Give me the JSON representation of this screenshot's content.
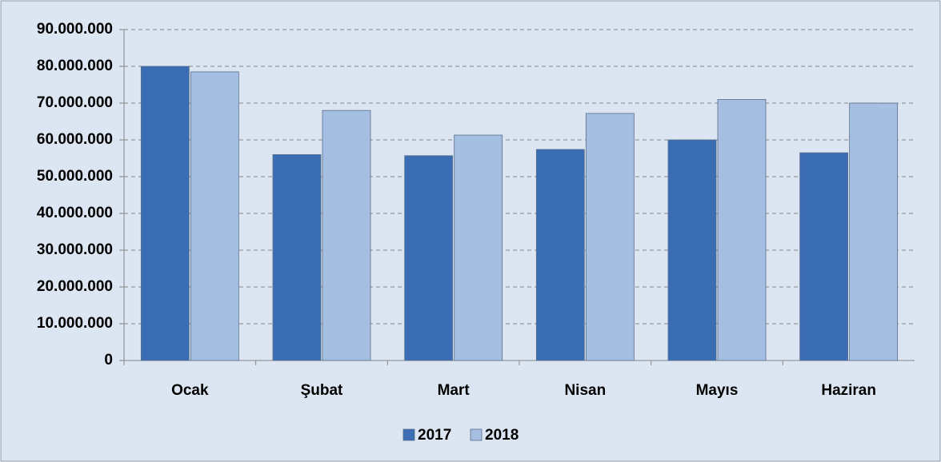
{
  "chart_data": {
    "type": "bar",
    "categories": [
      "Ocak",
      "Şubat",
      "Mart",
      "Nisan",
      "Mayıs",
      "Haziran"
    ],
    "series": [
      {
        "name": "2017",
        "color": "#3a6db3",
        "values": [
          80000000,
          56000000,
          55700000,
          57400000,
          60000000,
          56500000
        ]
      },
      {
        "name": "2018",
        "color": "#a5bfe2",
        "values": [
          78500000,
          68000000,
          61300000,
          67200000,
          71000000,
          70000000
        ]
      }
    ],
    "ylim": [
      0,
      90000000
    ],
    "yticks": [
      0,
      {
        "value": 10000000,
        "label": "10.000.000"
      },
      {
        "value": 20000000,
        "label": "20.000.000"
      },
      {
        "value": 30000000,
        "label": "30.000.000"
      },
      {
        "value": 40000000,
        "label": "40.000.000"
      },
      {
        "value": 50000000,
        "label": "50.000.000"
      },
      {
        "value": 60000000,
        "label": "60.000.000"
      },
      {
        "value": 70000000,
        "label": "70.000.000"
      },
      {
        "value": 80000000,
        "label": "80.000.000"
      },
      {
        "value": 90000000,
        "label": "90.000.000"
      }
    ],
    "grid": true,
    "legend": "bottom"
  }
}
